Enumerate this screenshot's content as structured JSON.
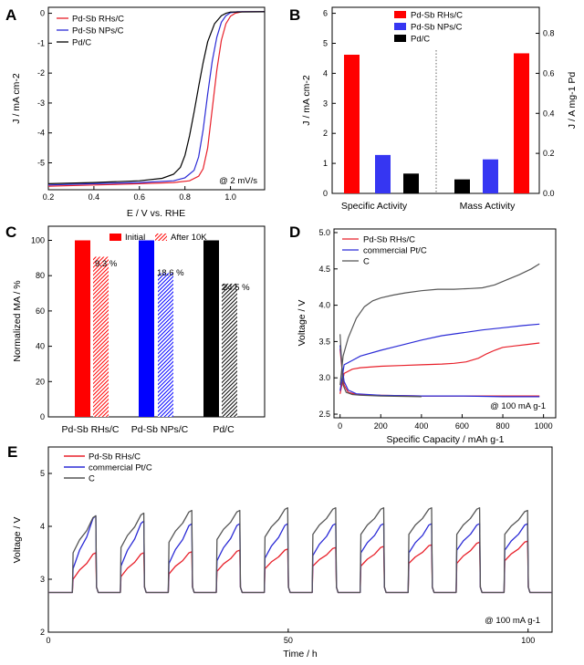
{
  "chart_data": [
    {
      "panel": "A",
      "type": "line",
      "xlabel": "E / V vs. RHE",
      "ylabel": "J / mA cm-2",
      "xlim": [
        0.2,
        1.15
      ],
      "ylim": [
        -5.9,
        0.2
      ],
      "xticks": [
        "0.2",
        "0.4",
        "0.6",
        "0.8",
        "1.0"
      ],
      "yticks": [
        "0",
        "-1",
        "-2",
        "-3",
        "-4",
        "-5"
      ],
      "annotation": "@ 2 mV/s",
      "series": [
        {
          "name": "Pd-Sb RHs/C",
          "color": "#e8202a",
          "x": [
            0.2,
            0.4,
            0.6,
            0.75,
            0.82,
            0.86,
            0.88,
            0.9,
            0.92,
            0.94,
            0.96,
            0.98,
            1.0,
            1.02,
            1.05,
            1.15
          ],
          "y": [
            -5.78,
            -5.74,
            -5.7,
            -5.66,
            -5.6,
            -5.45,
            -5.2,
            -4.5,
            -3.2,
            -1.9,
            -0.9,
            -0.35,
            -0.1,
            0.0,
            0.05,
            0.05
          ]
        },
        {
          "name": "Pd-Sb NPs/C",
          "color": "#2b2bd6",
          "x": [
            0.2,
            0.4,
            0.6,
            0.75,
            0.8,
            0.84,
            0.86,
            0.88,
            0.9,
            0.92,
            0.94,
            0.96,
            0.98,
            1.0,
            1.03,
            1.15
          ],
          "y": [
            -5.74,
            -5.7,
            -5.66,
            -5.6,
            -5.5,
            -5.25,
            -4.8,
            -3.9,
            -2.7,
            -1.6,
            -0.8,
            -0.3,
            -0.08,
            0.02,
            0.05,
            0.05
          ]
        },
        {
          "name": "Pd/C",
          "color": "#000000",
          "x": [
            0.2,
            0.4,
            0.6,
            0.7,
            0.75,
            0.78,
            0.8,
            0.82,
            0.84,
            0.86,
            0.88,
            0.9,
            0.93,
            0.96,
            0.98,
            1.0,
            1.15
          ],
          "y": [
            -5.7,
            -5.66,
            -5.6,
            -5.52,
            -5.38,
            -5.15,
            -4.75,
            -4.1,
            -3.3,
            -2.45,
            -1.65,
            -0.95,
            -0.35,
            -0.08,
            0.0,
            0.04,
            0.05
          ]
        }
      ]
    },
    {
      "panel": "B",
      "type": "bar",
      "categories": [
        "Specific Activity",
        "Mass Activity"
      ],
      "ylabel_left": "J / mA cm-2",
      "ylabel_right": "J / A mg-1 Pd",
      "ylim_left": [
        0,
        6.2
      ],
      "ylim_right": [
        0,
        0.93
      ],
      "yticks_left": [
        "0",
        "1",
        "2",
        "3",
        "4",
        "5",
        "6"
      ],
      "yticks_right": [
        "0.0",
        "0.2",
        "0.4",
        "0.6",
        "0.8"
      ],
      "series": [
        {
          "name": "Pd-Sb RHs/C",
          "color": "#ff0000",
          "specific": 4.62,
          "mass": 0.7
        },
        {
          "name": "Pd-Sb NPs/C",
          "color": "#3636f2",
          "specific": 1.28,
          "mass": 0.17
        },
        {
          "name": "Pd/C",
          "color": "#000000",
          "specific": 0.66,
          "mass": 0.07
        }
      ]
    },
    {
      "panel": "C",
      "type": "bar",
      "categories": [
        "Pd-Sb RHs/C",
        "Pd-Sb NPs/C",
        "Pd/C"
      ],
      "category_colors": [
        "#e8202a",
        "#2b2bd6",
        "#000000"
      ],
      "ylabel": "Normalized MA / %",
      "ylim": [
        0,
        108
      ],
      "yticks": [
        "0",
        "20",
        "40",
        "60",
        "80",
        "100"
      ],
      "legend": [
        "Initial",
        "After 10K"
      ],
      "series": [
        {
          "name": "Initial",
          "values": [
            100,
            100,
            100
          ]
        },
        {
          "name": "After 10K",
          "values": [
            90.7,
            81.4,
            75.5
          ]
        }
      ],
      "labels": [
        "9.3 %",
        "18.6 %",
        "24.5 %"
      ],
      "colors": [
        "#ff0000",
        "#0000ff",
        "#000000"
      ]
    },
    {
      "panel": "D",
      "type": "line",
      "xlabel": "Specific Capacity / mAh g-1",
      "ylabel": "Voltage / V",
      "xlim": [
        -30,
        1060
      ],
      "ylim": [
        2.45,
        5.05
      ],
      "xticks": [
        "0",
        "200",
        "400",
        "600",
        "800",
        "1000"
      ],
      "yticks": [
        "2.5",
        "3.0",
        "3.5",
        "4.0",
        "4.5",
        "5.0"
      ],
      "annotation": "@ 100 mA g-1",
      "series": [
        {
          "name": "Pd-Sb RHs/C",
          "color": "#e8202a",
          "charge_x": [
            0,
            20,
            60,
            100,
            200,
            300,
            400,
            500,
            560,
            620,
            680,
            720,
            760,
            800,
            860,
            920,
            980
          ],
          "charge_y": [
            2.78,
            3.06,
            3.12,
            3.14,
            3.16,
            3.17,
            3.18,
            3.19,
            3.2,
            3.22,
            3.27,
            3.33,
            3.38,
            3.42,
            3.44,
            3.46,
            3.48
          ],
          "discharge_x": [
            0,
            10,
            20,
            40,
            80,
            200,
            400,
            600,
            800,
            980
          ],
          "discharge_y": [
            3.4,
            3.1,
            2.9,
            2.8,
            2.77,
            2.76,
            2.75,
            2.75,
            2.75,
            2.75
          ]
        },
        {
          "name": "commercial Pt/C",
          "color": "#2b2bd6",
          "charge_x": [
            0,
            20,
            60,
            100,
            200,
            300,
            400,
            500,
            600,
            700,
            800,
            900,
            980
          ],
          "charge_y": [
            2.82,
            3.18,
            3.24,
            3.3,
            3.38,
            3.45,
            3.52,
            3.58,
            3.62,
            3.66,
            3.69,
            3.72,
            3.74
          ],
          "discharge_x": [
            0,
            10,
            20,
            40,
            80,
            200,
            400,
            600,
            800,
            980
          ],
          "discharge_y": [
            3.45,
            3.15,
            2.95,
            2.83,
            2.78,
            2.76,
            2.75,
            2.75,
            2.74,
            2.74
          ]
        },
        {
          "name": "C",
          "color": "#555555",
          "charge_x": [
            0,
            15,
            40,
            80,
            120,
            160,
            200,
            260,
            320,
            400,
            480,
            560,
            640,
            700,
            760,
            820,
            880,
            940,
            980
          ],
          "charge_y": [
            2.9,
            3.3,
            3.55,
            3.82,
            3.98,
            4.06,
            4.1,
            4.14,
            4.17,
            4.2,
            4.22,
            4.22,
            4.23,
            4.24,
            4.28,
            4.35,
            4.42,
            4.5,
            4.57
          ],
          "discharge_x": [
            0,
            8,
            15,
            30,
            60,
            100,
            200,
            400
          ],
          "discharge_y": [
            3.6,
            3.2,
            2.9,
            2.8,
            2.77,
            2.76,
            2.75,
            2.74
          ]
        }
      ]
    },
    {
      "panel": "E",
      "type": "line",
      "xlabel": "Time / h",
      "ylabel": "Voltage / V",
      "xlim": [
        0,
        105
      ],
      "ylim": [
        2,
        5.5
      ],
      "xticks": [
        "0",
        "50",
        "100"
      ],
      "yticks": [
        "2",
        "3",
        "4",
        "5"
      ],
      "annotation": "@ 100 mA g-1",
      "cycle_period_h": 10,
      "cycles": 10,
      "discharge_v": 2.75,
      "series": [
        {
          "name": "Pd-Sb RHs/C",
          "color": "#e8202a",
          "charge_start_v": [
            3.0,
            3.05,
            3.1,
            3.15,
            3.2,
            3.25,
            3.25,
            3.3,
            3.3,
            3.35
          ],
          "charge_end_v": [
            3.5,
            3.5,
            3.52,
            3.55,
            3.57,
            3.6,
            3.62,
            3.65,
            3.7,
            3.72
          ]
        },
        {
          "name": "commercial Pt/C",
          "color": "#2b2bd6",
          "charge_start_v": [
            3.2,
            3.25,
            3.3,
            3.35,
            3.4,
            3.45,
            3.5,
            3.5,
            3.55,
            3.55
          ],
          "charge_end_v": [
            4.2,
            4.1,
            4.05,
            4.05,
            4.05,
            4.05,
            4.05,
            4.05,
            4.05,
            4.05
          ]
        },
        {
          "name": "C",
          "color": "#555555",
          "charge_start_v": [
            3.5,
            3.6,
            3.7,
            3.75,
            3.8,
            3.85,
            3.85,
            3.85,
            3.85,
            3.85
          ],
          "charge_end_v": [
            4.2,
            4.25,
            4.3,
            4.3,
            4.35,
            4.35,
            4.35,
            4.35,
            4.35,
            4.3
          ]
        }
      ]
    }
  ],
  "panels": {
    "a": "A",
    "b": "B",
    "c": "C",
    "d": "D",
    "e": "E"
  }
}
